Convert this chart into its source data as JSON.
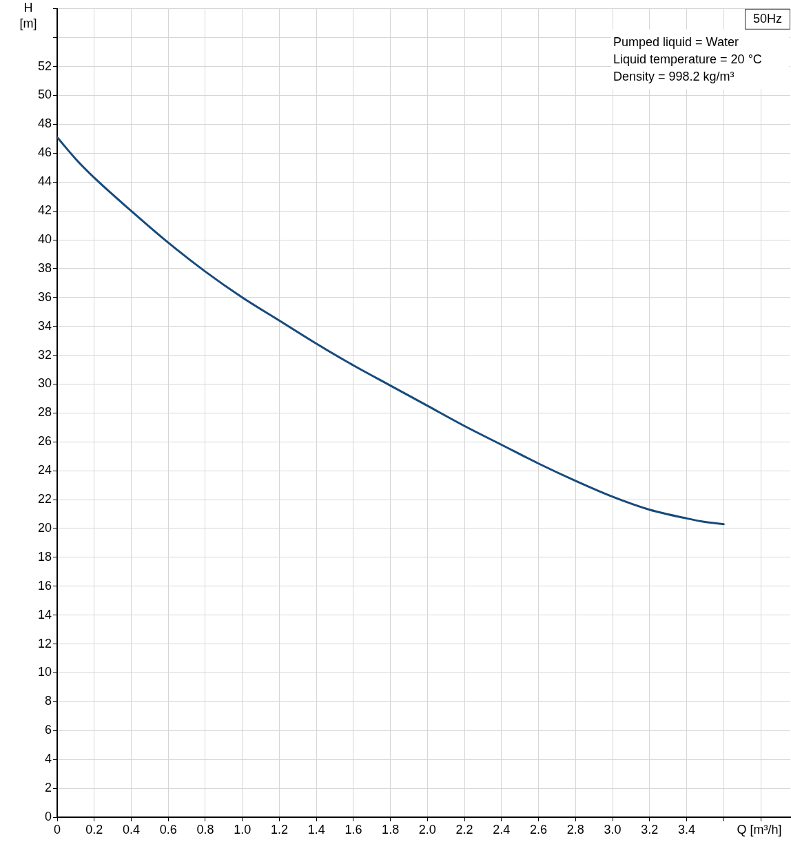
{
  "chart_data": {
    "type": "line",
    "title": "50Hz",
    "xlabel": "Q [m³/h]",
    "ylabel": "H [m]",
    "annotations": [
      "Pumped liquid = Water",
      "Liquid temperature = 20 °C",
      "Density = 998.2 kg/m³"
    ],
    "x": [
      0,
      0.1,
      0.2,
      0.4,
      0.6,
      0.8,
      1.0,
      1.2,
      1.4,
      1.6,
      1.8,
      2.0,
      2.2,
      2.4,
      2.6,
      2.8,
      3.0,
      3.2,
      3.4,
      3.5,
      3.6
    ],
    "series": [
      {
        "color": "#174a7c",
        "values": [
          47.1,
          45.6,
          44.3,
          42.0,
          39.8,
          37.8,
          36.0,
          34.4,
          32.8,
          31.3,
          29.9,
          28.5,
          27.1,
          25.8,
          24.5,
          23.3,
          22.2,
          21.3,
          20.7,
          20.45,
          20.3
        ]
      }
    ],
    "xlim": [
      0,
      3.96
    ],
    "xticks": [
      0,
      0.2,
      0.4,
      0.6,
      0.8,
      {
        "value": 1,
        "label": "1.0"
      },
      1.2,
      1.4,
      1.6,
      1.8,
      {
        "value": 2,
        "label": "2.0"
      },
      2.2,
      2.4,
      2.6,
      2.8,
      {
        "value": 3,
        "label": "3.0"
      },
      3.2,
      3.4,
      {
        "value": 3.6,
        "label": null
      },
      {
        "value": 3.8,
        "label": null
      }
    ],
    "ylim": [
      0,
      56
    ],
    "yticks": [
      0,
      2,
      4,
      6,
      8,
      10,
      12,
      14,
      16,
      18,
      20,
      22,
      24,
      26,
      28,
      30,
      32,
      34,
      36,
      38,
      40,
      42,
      44,
      46,
      48,
      50,
      52,
      {
        "value": 54,
        "label": null
      },
      {
        "value": 56,
        "label": null
      }
    ],
    "grid": true,
    "legend": false,
    "marker": "none",
    "line_style": "solid"
  }
}
